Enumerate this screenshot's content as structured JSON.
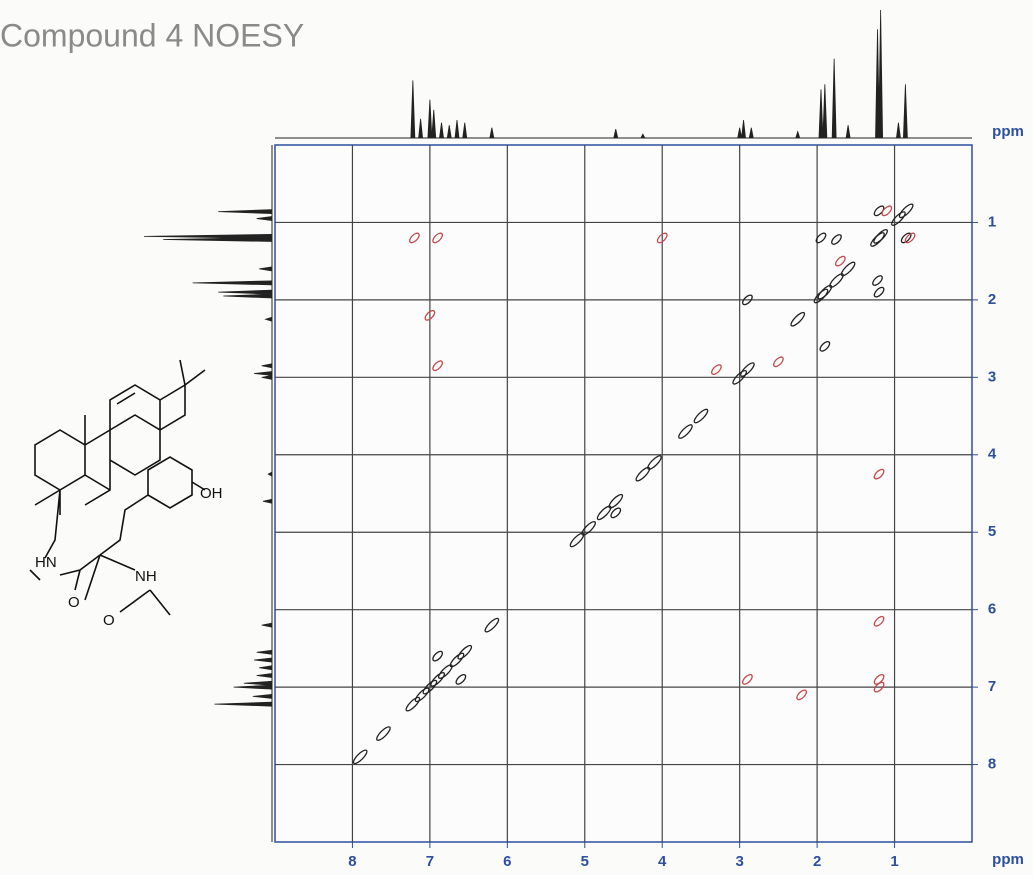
{
  "chart_data": {
    "type": "scatter",
    "title": "Compound 4 NOESY",
    "x_label": "ppm",
    "y_label": "ppm",
    "xlim": [
      9,
      0
    ],
    "ylim": [
      0,
      9
    ],
    "xticks": [
      8,
      7,
      6,
      5,
      4,
      3,
      2,
      1
    ],
    "yticks": [
      1,
      2,
      3,
      4,
      5,
      6,
      7,
      8
    ],
    "grid": true,
    "projection": {
      "color": "#222222",
      "x": [
        7.22,
        7.12,
        7.0,
        6.95,
        6.85,
        6.75,
        6.65,
        6.55,
        6.2,
        4.6,
        4.25,
        3.0,
        2.95,
        2.85,
        2.25,
        1.95,
        1.9,
        1.78,
        1.6,
        1.22,
        1.18,
        0.95,
        0.86
      ],
      "values": [
        0.45,
        0.15,
        0.3,
        0.22,
        0.12,
        0.1,
        0.14,
        0.12,
        0.08,
        0.07,
        0.03,
        0.08,
        0.14,
        0.08,
        0.05,
        0.38,
        0.42,
        0.62,
        0.1,
        0.85,
        1.0,
        0.12,
        0.42
      ]
    },
    "series": [
      {
        "color": "#222222",
        "x": [
          7.9,
          7.6,
          7.22,
          7.1,
          7.0,
          6.9,
          6.8,
          6.65,
          6.55,
          6.2,
          5.1,
          4.95,
          4.75,
          4.6,
          4.25,
          4.1,
          3.7,
          3.5,
          3.0,
          2.9,
          2.25,
          1.95,
          1.9,
          1.75,
          1.6,
          1.22,
          1.18,
          0.95,
          0.85
        ],
        "values": [
          7.9,
          7.6,
          7.22,
          7.1,
          7.0,
          6.9,
          6.8,
          6.65,
          6.55,
          6.2,
          5.1,
          4.95,
          4.75,
          4.6,
          4.25,
          4.1,
          3.7,
          3.5,
          3.0,
          2.9,
          2.25,
          1.95,
          1.9,
          1.75,
          1.6,
          1.22,
          1.18,
          0.95,
          0.85
        ]
      },
      {
        "color": "#222222",
        "x": [
          1.9,
          1.95,
          1.2,
          2.9,
          1.2,
          0.85,
          1.22,
          1.75,
          4.6,
          6.9,
          6.6
        ],
        "values": [
          2.6,
          1.2,
          1.9,
          2.0,
          0.85,
          1.2,
          1.75,
          1.22,
          4.75,
          6.6,
          6.9
        ]
      },
      {
        "color": "#c84a4a",
        "x": [
          1.2,
          1.2,
          1.2,
          2.9,
          2.2,
          6.9,
          6.9,
          7.0,
          7.2,
          4.0,
          1.2,
          2.5,
          1.1,
          0.8,
          1.7,
          3.3
        ],
        "values": [
          6.9,
          7.0,
          6.15,
          6.9,
          7.1,
          1.2,
          2.85,
          2.2,
          1.2,
          1.2,
          4.25,
          2.8,
          0.85,
          1.2,
          1.5,
          2.9
        ]
      }
    ]
  },
  "structure_labels": [
    "OH",
    "HN",
    "O",
    "NH",
    "O"
  ]
}
